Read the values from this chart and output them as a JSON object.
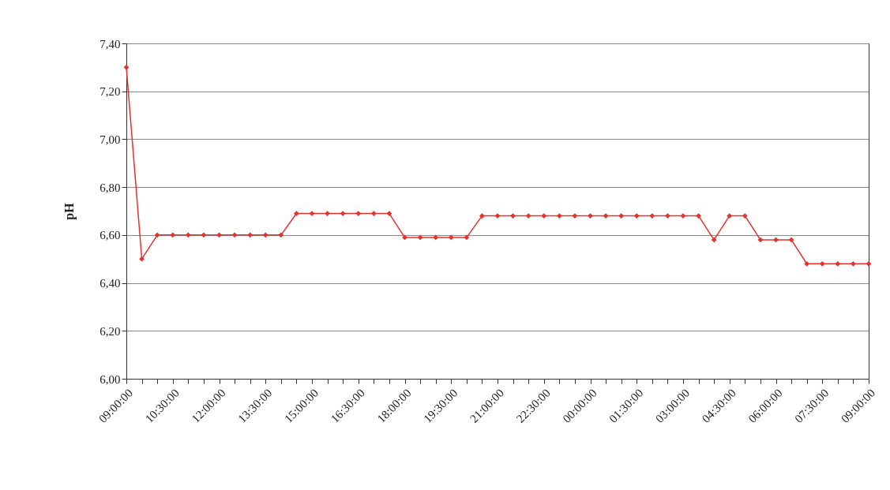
{
  "chart_data": {
    "type": "line",
    "ylabel": "pH",
    "categories": [
      "09:00:00",
      null,
      null,
      "10:30:00",
      null,
      null,
      "12:00:00",
      null,
      null,
      "13:30:00",
      null,
      null,
      "15:00:00",
      null,
      null,
      "16:30:00",
      null,
      null,
      "18:00:00",
      null,
      null,
      "19:30:00",
      null,
      null,
      "21:00:00",
      null,
      null,
      "22:30:00",
      null,
      null,
      "00:00:00",
      null,
      null,
      "01:30:00",
      null,
      null,
      "03:00:00",
      null,
      null,
      "04:30:00",
      null,
      null,
      "06:00:00",
      null,
      null,
      "07:30:00",
      null,
      null,
      "09:00:00"
    ],
    "series": [
      {
        "color": "#e8312a",
        "values": [
          7.3,
          6.5,
          6.6,
          6.6,
          6.6,
          6.6,
          6.6,
          6.6,
          6.6,
          6.6,
          6.6,
          6.69,
          6.69,
          6.69,
          6.69,
          6.69,
          6.69,
          6.69,
          6.59,
          6.59,
          6.59,
          6.59,
          6.59,
          6.68,
          6.68,
          6.68,
          6.68,
          6.68,
          6.68,
          6.68,
          6.68,
          6.68,
          6.68,
          6.68,
          6.68,
          6.68,
          6.68,
          6.68,
          6.58,
          6.68,
          6.68,
          6.58,
          6.58,
          6.58,
          6.48,
          6.48,
          6.48,
          6.48,
          6.48
        ]
      }
    ],
    "ylim": [
      6.0,
      7.4
    ],
    "yticks": [
      {
        "value": 6.0,
        "label": "6,00"
      },
      {
        "value": 6.2,
        "label": "6,20"
      },
      {
        "value": 6.4,
        "label": "6,40"
      },
      {
        "value": 6.6,
        "label": "6,60"
      },
      {
        "value": 6.8,
        "label": "6,80"
      },
      {
        "value": 7.0,
        "label": "7,00"
      },
      {
        "value": 7.2,
        "label": "7,20"
      },
      {
        "value": 7.4,
        "label": "7,40"
      }
    ],
    "grid": "y",
    "marker": "diamond",
    "line_style": "solid"
  }
}
